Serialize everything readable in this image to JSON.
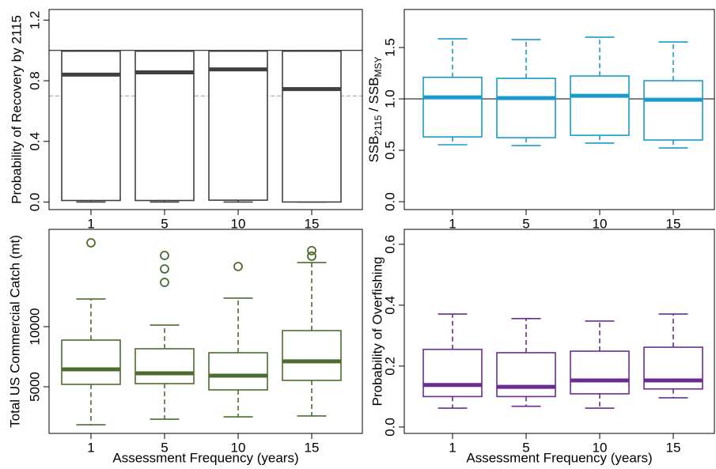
{
  "chart_data": [
    {
      "type": "box",
      "color": "#404040",
      "median_color": "#404040",
      "y_label": "Probability of Recovery by 2115",
      "categories": [
        "1",
        "5",
        "10",
        "15"
      ],
      "ylim": [
        -0.05,
        1.27
      ],
      "yticks": [
        {
          "value": 0,
          "label": "0.0"
        },
        0.4,
        0.8,
        1.2
      ],
      "hlines": [
        {
          "value": 1.0,
          "style": "solid"
        },
        {
          "value": 0.7,
          "style": "dashed"
        }
      ],
      "boxes": [
        {
          "whislo": 0.0,
          "q1": 0.01,
          "med": 0.84,
          "q3": 0.995,
          "whishi": 1.0,
          "fliers": []
        },
        {
          "whislo": 0.0,
          "q1": 0.01,
          "med": 0.855,
          "q3": 0.995,
          "whishi": 1.0,
          "fliers": []
        },
        {
          "whislo": 0.0,
          "q1": 0.012,
          "med": 0.875,
          "q3": 0.995,
          "whishi": 1.0,
          "fliers": []
        },
        {
          "whislo": 0.0,
          "q1": 0.0,
          "med": 0.745,
          "q3": 0.995,
          "whishi": 1.0,
          "fliers": []
        }
      ]
    },
    {
      "type": "box",
      "color": "#1a9acb",
      "median_color": "#1a9acb",
      "y_label": [
        "SSB",
        "2115",
        " / SSB",
        "MSY"
      ],
      "categories": [
        "1",
        "5",
        "10",
        "15"
      ],
      "ylim": [
        -0.077,
        1.87
      ],
      "yticks": [
        {
          "value": 0,
          "label": "0.0"
        },
        0.5,
        {
          "value": 1,
          "label": "1.0"
        },
        1.5
      ],
      "hlines": [
        {
          "value": 1.0,
          "style": "solid"
        }
      ],
      "boxes": [
        {
          "whislo": 0.554,
          "q1": 0.63,
          "med": 1.015,
          "q3": 1.21,
          "whishi": 1.585,
          "fliers": []
        },
        {
          "whislo": 0.546,
          "q1": 0.623,
          "med": 1.008,
          "q3": 1.2,
          "whishi": 1.577,
          "fliers": []
        },
        {
          "whislo": 0.57,
          "q1": 0.646,
          "med": 1.03,
          "q3": 1.223,
          "whishi": 1.6,
          "fliers": []
        },
        {
          "whislo": 0.523,
          "q1": 0.6,
          "med": 0.992,
          "q3": 1.177,
          "whishi": 1.554,
          "fliers": []
        }
      ]
    },
    {
      "type": "box",
      "color": "#4e6b2e",
      "median_color": "#4e6b2e",
      "y_label": "Total US Commercial Catch (mt)",
      "x_label": "Assessment Frequency (years)",
      "categories": [
        "1",
        "5",
        "10",
        "15"
      ],
      "ylim": [
        1120,
        18090
      ],
      "yticks": [
        5000,
        10000
      ],
      "hlines": [],
      "boxes": [
        {
          "whislo": 1840,
          "q1": 5200,
          "med": 6450,
          "q3": 8880,
          "whishi": 12300,
          "fliers": [
            16970
          ]
        },
        {
          "whislo": 2300,
          "q1": 5260,
          "med": 6120,
          "q3": 8160,
          "whishi": 10130,
          "fliers": [
            15920,
            14800,
            13680
          ]
        },
        {
          "whislo": 2500,
          "q1": 4740,
          "med": 5920,
          "q3": 7830,
          "whishi": 12370,
          "fliers": [
            15000
          ]
        },
        {
          "whislo": 2570,
          "q1": 5530,
          "med": 7110,
          "q3": 9670,
          "whishi": 15330,
          "fliers": [
            16320,
            15860
          ]
        }
      ]
    },
    {
      "type": "box",
      "color": "#6a2c91",
      "median_color": "#6a2c91",
      "y_label": "Probability of Overfishing",
      "x_label": "Assessment Frequency (years)",
      "categories": [
        "1",
        "5",
        "10",
        "15"
      ],
      "ylim": [
        -0.021,
        0.649
      ],
      "yticks": [
        {
          "value": 0,
          "label": "0.0"
        },
        0.2,
        0.4,
        0.6
      ],
      "hlines": [],
      "boxes": [
        {
          "whislo": 0.062,
          "q1": 0.1,
          "med": 0.138,
          "q3": 0.255,
          "whishi": 0.371,
          "fliers": []
        },
        {
          "whislo": 0.068,
          "q1": 0.1,
          "med": 0.132,
          "q3": 0.244,
          "whishi": 0.356,
          "fliers": []
        },
        {
          "whislo": 0.062,
          "q1": 0.109,
          "med": 0.153,
          "q3": 0.249,
          "whishi": 0.348,
          "fliers": []
        },
        {
          "whislo": 0.096,
          "q1": 0.125,
          "med": 0.153,
          "q3": 0.262,
          "whishi": 0.371,
          "fliers": []
        }
      ]
    }
  ]
}
